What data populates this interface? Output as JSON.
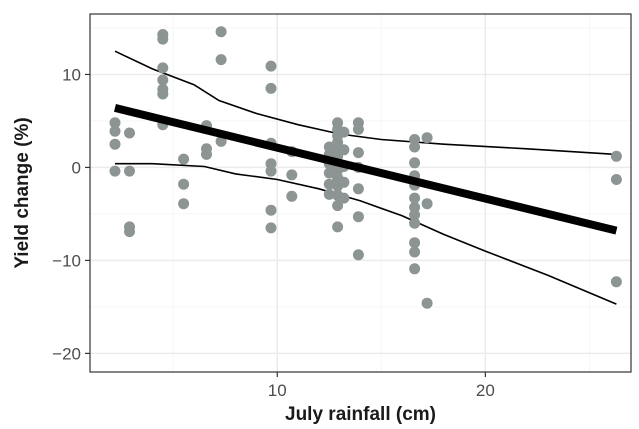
{
  "chart_data": {
    "type": "scatter",
    "title": "",
    "xlabel": "July rainfall (cm)",
    "ylabel": "Yield change (%)",
    "xlim": [
      1.0,
      27.0
    ],
    "ylim": [
      -22.0,
      16.5
    ],
    "x_ticks": [
      10,
      20
    ],
    "x_tick_labels": [
      "10",
      "20"
    ],
    "y_ticks": [
      -20,
      -10,
      0,
      10
    ],
    "y_tick_labels": [
      "−20",
      "−10",
      "0",
      "10"
    ],
    "grid": true,
    "legend": "none",
    "colors": {
      "points": "#8c9594",
      "fit_line": "#000000",
      "band_lines": "#000000",
      "grid_major": "#ebebeb",
      "grid_minor": "#f5f5f5",
      "panel_border": "#333333"
    },
    "points": [
      {
        "x": 2.2,
        "y": 4.8
      },
      {
        "x": 2.2,
        "y": 3.9
      },
      {
        "x": 2.2,
        "y": 2.5
      },
      {
        "x": 2.2,
        "y": -0.4
      },
      {
        "x": 2.9,
        "y": 3.7
      },
      {
        "x": 2.9,
        "y": -0.4
      },
      {
        "x": 2.9,
        "y": -6.4
      },
      {
        "x": 2.9,
        "y": -6.9
      },
      {
        "x": 4.5,
        "y": 14.3
      },
      {
        "x": 4.5,
        "y": 13.8
      },
      {
        "x": 4.5,
        "y": 10.7
      },
      {
        "x": 4.5,
        "y": 9.4
      },
      {
        "x": 4.5,
        "y": 8.4
      },
      {
        "x": 4.5,
        "y": 7.9
      },
      {
        "x": 4.5,
        "y": 4.6
      },
      {
        "x": 5.5,
        "y": 0.9
      },
      {
        "x": 5.5,
        "y": -1.8
      },
      {
        "x": 5.5,
        "y": -3.9
      },
      {
        "x": 6.6,
        "y": 4.5
      },
      {
        "x": 6.6,
        "y": 2.0
      },
      {
        "x": 6.6,
        "y": 1.4
      },
      {
        "x": 7.3,
        "y": 14.6
      },
      {
        "x": 7.3,
        "y": 11.6
      },
      {
        "x": 7.3,
        "y": 2.8
      },
      {
        "x": 9.7,
        "y": 10.9
      },
      {
        "x": 9.7,
        "y": 8.5
      },
      {
        "x": 9.7,
        "y": 2.6
      },
      {
        "x": 9.7,
        "y": 0.4
      },
      {
        "x": 9.7,
        "y": -0.4
      },
      {
        "x": 9.7,
        "y": -4.6
      },
      {
        "x": 9.7,
        "y": -6.5
      },
      {
        "x": 10.7,
        "y": 1.7
      },
      {
        "x": 10.7,
        "y": -0.8
      },
      {
        "x": 10.7,
        "y": -3.1
      },
      {
        "x": 12.5,
        "y": 2.2
      },
      {
        "x": 12.5,
        "y": 1.4
      },
      {
        "x": 12.5,
        "y": 0.4
      },
      {
        "x": 12.5,
        "y": -0.6
      },
      {
        "x": 12.5,
        "y": -1.8
      },
      {
        "x": 12.5,
        "y": -2.9
      },
      {
        "x": 12.9,
        "y": 4.8
      },
      {
        "x": 12.9,
        "y": 4.1
      },
      {
        "x": 12.9,
        "y": 3.4
      },
      {
        "x": 12.9,
        "y": 2.7
      },
      {
        "x": 12.9,
        "y": 2.0
      },
      {
        "x": 12.9,
        "y": 1.2
      },
      {
        "x": 12.9,
        "y": 0.5
      },
      {
        "x": 12.9,
        "y": -0.3
      },
      {
        "x": 12.9,
        "y": -1.1
      },
      {
        "x": 12.9,
        "y": -2.0
      },
      {
        "x": 12.9,
        "y": -3.0
      },
      {
        "x": 12.9,
        "y": -4.1
      },
      {
        "x": 12.9,
        "y": -6.4
      },
      {
        "x": 13.2,
        "y": 3.8
      },
      {
        "x": 13.2,
        "y": 1.9
      },
      {
        "x": 13.2,
        "y": 0.1
      },
      {
        "x": 13.2,
        "y": -1.6
      },
      {
        "x": 13.2,
        "y": -3.3
      },
      {
        "x": 13.9,
        "y": 4.8
      },
      {
        "x": 13.9,
        "y": 4.1
      },
      {
        "x": 13.9,
        "y": 1.6
      },
      {
        "x": 13.9,
        "y": 0.0
      },
      {
        "x": 13.9,
        "y": -2.3
      },
      {
        "x": 13.9,
        "y": -5.3
      },
      {
        "x": 13.9,
        "y": -9.4
      },
      {
        "x": 16.6,
        "y": 3.0
      },
      {
        "x": 16.6,
        "y": 2.2
      },
      {
        "x": 16.6,
        "y": 0.5
      },
      {
        "x": 16.6,
        "y": -0.9
      },
      {
        "x": 16.6,
        "y": -1.9
      },
      {
        "x": 16.6,
        "y": -3.3
      },
      {
        "x": 16.6,
        "y": -4.3
      },
      {
        "x": 16.6,
        "y": -5.1
      },
      {
        "x": 16.6,
        "y": -6.0
      },
      {
        "x": 16.6,
        "y": -8.1
      },
      {
        "x": 16.6,
        "y": -9.1
      },
      {
        "x": 16.6,
        "y": -10.9
      },
      {
        "x": 17.2,
        "y": 3.2
      },
      {
        "x": 17.2,
        "y": -3.9
      },
      {
        "x": 17.2,
        "y": -14.6
      },
      {
        "x": 26.3,
        "y": 1.2
      },
      {
        "x": 26.3,
        "y": -1.3
      },
      {
        "x": 26.3,
        "y": -12.3
      }
    ],
    "fit_line": [
      {
        "x": 2.2,
        "y": 6.4
      },
      {
        "x": 26.3,
        "y": -6.8
      }
    ],
    "band_upper": [
      {
        "x": 2.2,
        "y": 12.5
      },
      {
        "x": 4.0,
        "y": 10.6
      },
      {
        "x": 6.0,
        "y": 8.9
      },
      {
        "x": 7.2,
        "y": 7.2
      },
      {
        "x": 9.0,
        "y": 5.8
      },
      {
        "x": 11.0,
        "y": 4.6
      },
      {
        "x": 13.0,
        "y": 3.6
      },
      {
        "x": 15.0,
        "y": 3.0
      },
      {
        "x": 18.0,
        "y": 2.5
      },
      {
        "x": 22.0,
        "y": 2.0
      },
      {
        "x": 26.3,
        "y": 1.4
      }
    ],
    "band_lower": [
      {
        "x": 2.2,
        "y": 0.4
      },
      {
        "x": 4.0,
        "y": 0.4
      },
      {
        "x": 6.5,
        "y": 0.1
      },
      {
        "x": 8.0,
        "y": -0.7
      },
      {
        "x": 10.0,
        "y": -1.3
      },
      {
        "x": 12.0,
        "y": -2.3
      },
      {
        "x": 14.0,
        "y": -3.6
      },
      {
        "x": 16.0,
        "y": -5.2
      },
      {
        "x": 18.0,
        "y": -7.2
      },
      {
        "x": 20.0,
        "y": -9.0
      },
      {
        "x": 23.0,
        "y": -11.6
      },
      {
        "x": 26.3,
        "y": -14.7
      }
    ]
  }
}
